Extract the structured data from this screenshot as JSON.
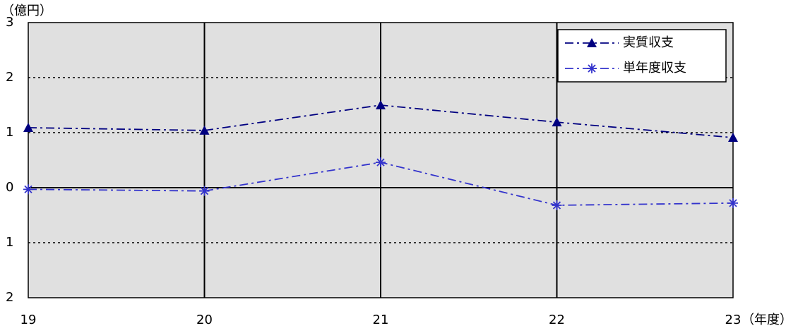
{
  "chart_data": {
    "type": "line",
    "y_unit_label": "（億円）",
    "x_unit_label": "（年度）",
    "categories": [
      "19",
      "20",
      "21",
      "22",
      "23"
    ],
    "series": [
      {
        "name": "実質収支",
        "color": "#000080",
        "marker": "triangle",
        "values": [
          1.09,
          1.04,
          1.5,
          1.19,
          0.91
        ]
      },
      {
        "name": "単年度収支",
        "color": "#3333cc",
        "marker": "asterisk",
        "values": [
          -0.03,
          -0.06,
          0.46,
          -0.32,
          -0.28
        ]
      }
    ],
    "ylim": [
      -2,
      3
    ],
    "yticks": [
      {
        "value": -2,
        "label": "2"
      },
      {
        "value": -1,
        "label": "1"
      },
      0,
      1,
      2,
      3
    ],
    "grid": true,
    "legend": "upper right"
  }
}
